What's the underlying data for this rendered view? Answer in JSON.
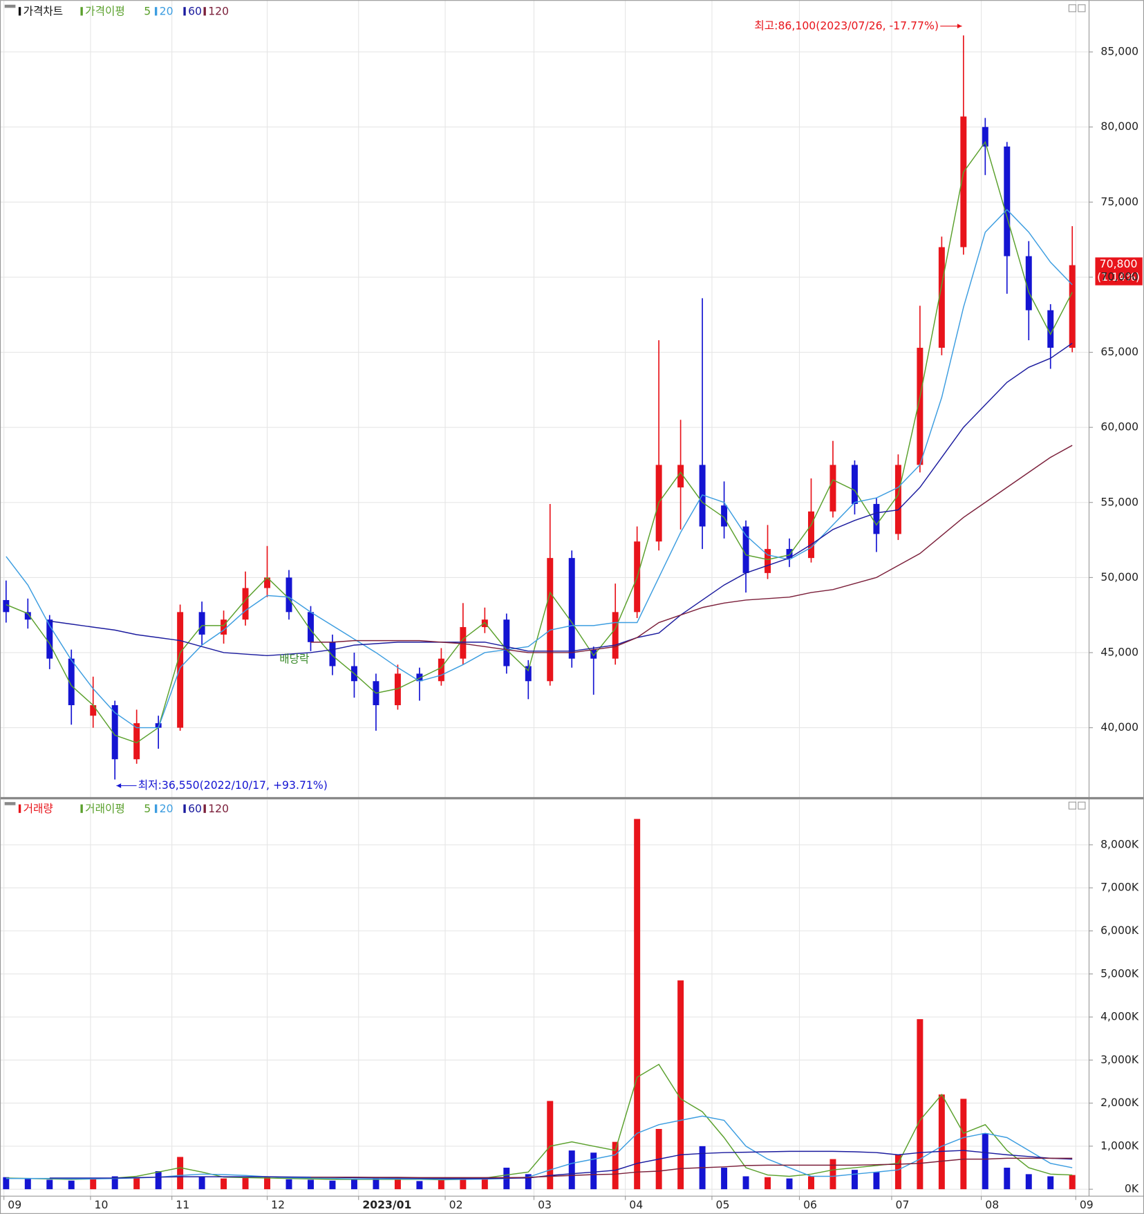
{
  "chart_data": [
    {
      "type": "candlestick",
      "title": "가격차트",
      "ma_label": "가격이평",
      "x": [
        0,
        5,
        10,
        15,
        20,
        25,
        30,
        35,
        40,
        45,
        50,
        55,
        60,
        65,
        70,
        75,
        80,
        85,
        90,
        95,
        100,
        105,
        110,
        115,
        120,
        125,
        130,
        135,
        140,
        145,
        150,
        155,
        160,
        165,
        170,
        175,
        180,
        185,
        190,
        195,
        200,
        205,
        210,
        215,
        220,
        225,
        230,
        235,
        240,
        245
      ],
      "open": [
        48500,
        47700,
        47200,
        44600,
        40800,
        41500,
        37900,
        40300,
        40000,
        47700,
        46200,
        47200,
        49300,
        50000,
        47700,
        45700,
        44100,
        43100,
        41500,
        43600,
        43100,
        44600,
        46700,
        47200,
        44100,
        43100,
        51300,
        45200,
        44600,
        47700,
        52400,
        56000,
        57500,
        54800,
        53400,
        50300,
        51900,
        51300,
        54400,
        57500,
        54900,
        52900,
        57500,
        65300,
        72000,
        80000,
        78700,
        71400,
        67800,
        65300
      ],
      "high": [
        49800,
        48600,
        47500,
        45200,
        43400,
        41800,
        41200,
        40800,
        48200,
        48400,
        47800,
        50400,
        52100,
        50500,
        48100,
        46200,
        45000,
        43600,
        44200,
        44000,
        45300,
        48300,
        48000,
        47600,
        44500,
        54900,
        51800,
        45400,
        49600,
        53400,
        65800,
        60500,
        68600,
        56400,
        53800,
        53500,
        52600,
        56600,
        59100,
        57800,
        55300,
        58200,
        68100,
        72700,
        86100,
        80600,
        79000,
        72400,
        68200,
        73400
      ],
      "low": [
        47000,
        46600,
        43900,
        40200,
        40000,
        36550,
        37600,
        38600,
        39800,
        45500,
        45600,
        46800,
        48700,
        47200,
        45100,
        43500,
        42000,
        39800,
        41200,
        41800,
        42800,
        44200,
        46300,
        43600,
        41900,
        42800,
        44000,
        42200,
        44200,
        47300,
        51800,
        53200,
        51900,
        52600,
        49000,
        49900,
        50700,
        51000,
        54000,
        54200,
        51700,
        52500,
        57000,
        64800,
        71500,
        76800,
        68900,
        65800,
        63900,
        65000
      ],
      "close": [
        47700,
        47200,
        44600,
        41500,
        41500,
        37900,
        40300,
        40000,
        47700,
        46200,
        47200,
        49300,
        50000,
        47700,
        45700,
        44100,
        43100,
        41500,
        43600,
        43100,
        44600,
        46700,
        47200,
        44100,
        43100,
        51300,
        44600,
        44600,
        47700,
        52400,
        57500,
        57500,
        53400,
        53400,
        50300,
        51900,
        51300,
        54400,
        57500,
        54900,
        52900,
        57500,
        65300,
        72000,
        80700,
        78700,
        71400,
        67800,
        65300,
        70800
      ],
      "up_color": "#e8141b",
      "down_color": "#1414d2",
      "series": [
        {
          "name": "5",
          "color": "#5aa02c",
          "values": [
            48200,
            47600,
            45600,
            42800,
            41500,
            39500,
            39000,
            40000,
            45000,
            46800,
            46800,
            48500,
            50000,
            48600,
            46500,
            44800,
            43600,
            42300,
            42600,
            43300,
            44000,
            45900,
            47000,
            45200,
            43800,
            49000,
            47000,
            44800,
            46600,
            50000,
            55000,
            57000,
            55000,
            54000,
            51500,
            51200,
            51500,
            53500,
            56500,
            55800,
            53500,
            55500,
            62000,
            69500,
            77000,
            79000,
            74000,
            69000,
            66200,
            69000
          ]
        },
        {
          "name": "20",
          "color": "#3c9de0",
          "values": [
            51400,
            49500,
            46800,
            44500,
            42600,
            41000,
            40000,
            40000,
            44000,
            45500,
            46500,
            47800,
            48800,
            48700,
            47700,
            46800,
            45900,
            45000,
            44000,
            43100,
            43500,
            44200,
            45000,
            45200,
            45400,
            46500,
            46800,
            46800,
            47000,
            47000,
            50000,
            53000,
            55500,
            55000,
            52800,
            51500,
            51200,
            52000,
            53500,
            55000,
            55300,
            56000,
            57500,
            62000,
            68000,
            73000,
            74500,
            73000,
            71000,
            69500
          ]
        },
        {
          "name": "60",
          "color": "#1b1b9e",
          "values": [
            null,
            null,
            47100,
            46900,
            46700,
            46500,
            46200,
            46000,
            45800,
            45400,
            45000,
            44900,
            44800,
            44900,
            45000,
            45200,
            45500,
            45600,
            45700,
            45700,
            45700,
            45700,
            45700,
            45400,
            45100,
            45100,
            45100,
            45300,
            45500,
            46000,
            46300,
            47500,
            48500,
            49500,
            50300,
            50800,
            51300,
            52200,
            53200,
            53800,
            54300,
            54500,
            56000,
            58000,
            60000,
            61500,
            63000,
            64000,
            64600,
            65600
          ]
        },
        {
          "name": "120",
          "color": "#7b1f3a",
          "values": [
            null,
            null,
            null,
            null,
            null,
            null,
            null,
            null,
            null,
            null,
            null,
            null,
            null,
            null,
            45700,
            45700,
            45800,
            45800,
            45800,
            45800,
            45700,
            45600,
            45400,
            45200,
            45000,
            45000,
            45000,
            45200,
            45400,
            46000,
            47000,
            47500,
            48000,
            48300,
            48500,
            48600,
            48700,
            49000,
            49200,
            49600,
            50000,
            50800,
            51600,
            52800,
            54000,
            55000,
            56000,
            57000,
            58000,
            58800
          ]
        }
      ],
      "xlim": [
        -1.4,
        248.5
      ],
      "ylim": [
        35460,
        88040
      ],
      "yticks": [
        {
          "value": 40000,
          "label": "40,000"
        },
        {
          "value": 45000,
          "label": "45,000"
        },
        {
          "value": 50000,
          "label": "50,000"
        },
        {
          "value": 55000,
          "label": "55,000"
        },
        {
          "value": 60000,
          "label": "60,000"
        },
        {
          "value": 65000,
          "label": "65,000"
        },
        {
          "value": 70000,
          "label": "70,000"
        },
        {
          "value": 75000,
          "label": "75,000"
        },
        {
          "value": 80000,
          "label": "80,000"
        },
        {
          "value": 85000,
          "label": "85,000"
        }
      ],
      "grid": true,
      "high_note": "최고:86,100(2023/07/26, -17.77%)",
      "low_note": "최저:36,550(2022/10/17, +93.71%)",
      "dividend_note": "배당락",
      "last_label": "70,800",
      "last_change": "(1.14%)"
    },
    {
      "type": "bar",
      "title": "거래량",
      "ma_label": "거래이평",
      "x": [
        0,
        5,
        10,
        15,
        20,
        25,
        30,
        35,
        40,
        45,
        50,
        55,
        60,
        65,
        70,
        75,
        80,
        85,
        90,
        95,
        100,
        105,
        110,
        115,
        120,
        125,
        130,
        135,
        140,
        145,
        150,
        155,
        160,
        165,
        170,
        175,
        180,
        185,
        190,
        195,
        200,
        205,
        210,
        215,
        220,
        225,
        230,
        235,
        240,
        245
      ],
      "values": [
        280,
        250,
        220,
        200,
        240,
        300,
        260,
        420,
        750,
        300,
        250,
        280,
        300,
        230,
        220,
        200,
        250,
        260,
        220,
        190,
        210,
        250,
        230,
        500,
        350,
        2050,
        900,
        850,
        1100,
        8600,
        1400,
        4850,
        1000,
        500,
        300,
        280,
        250,
        300,
        700,
        450,
        400,
        800,
        3950,
        2200,
        2100,
        1300,
        500,
        350,
        300,
        330
      ],
      "series": [
        {
          "name": "5",
          "color": "#5aa02c",
          "values": [
            260,
            250,
            240,
            230,
            240,
            260,
            300,
            400,
            500,
            400,
            280,
            270,
            260,
            250,
            240,
            230,
            230,
            230,
            230,
            230,
            220,
            230,
            260,
            330,
            400,
            1000,
            1100,
            1000,
            900,
            2600,
            2900,
            2100,
            1800,
            1200,
            500,
            330,
            300,
            350,
            450,
            500,
            550,
            600,
            1600,
            2200,
            1300,
            1500,
            900,
            500,
            350,
            330
          ]
        },
        {
          "name": "20",
          "color": "#3c9de0",
          "values": [
            250,
            250,
            250,
            240,
            240,
            250,
            260,
            280,
            320,
            350,
            340,
            320,
            290,
            270,
            260,
            250,
            240,
            240,
            240,
            235,
            230,
            230,
            235,
            250,
            280,
            450,
            600,
            700,
            800,
            1300,
            1500,
            1600,
            1700,
            1600,
            1000,
            700,
            500,
            300,
            300,
            350,
            400,
            450,
            700,
            1000,
            1200,
            1300,
            1200,
            900,
            600,
            500
          ]
        },
        {
          "name": "60",
          "color": "#1b1b9e",
          "values": [
            null,
            null,
            260,
            260,
            260,
            260,
            270,
            280,
            290,
            290,
            290,
            290,
            290,
            285,
            280,
            275,
            270,
            265,
            260,
            255,
            250,
            250,
            250,
            255,
            260,
            320,
            360,
            400,
            440,
            600,
            700,
            800,
            830,
            850,
            860,
            870,
            880,
            880,
            880,
            870,
            850,
            800,
            850,
            880,
            900,
            850,
            800,
            760,
            720,
            700
          ]
        },
        {
          "name": "120",
          "color": "#7b1f3a",
          "values": [
            null,
            null,
            null,
            null,
            null,
            null,
            null,
            null,
            null,
            null,
            null,
            null,
            null,
            null,
            280,
            280,
            280,
            275,
            275,
            270,
            270,
            270,
            270,
            270,
            275,
            300,
            320,
            340,
            350,
            400,
            420,
            480,
            500,
            520,
            550,
            560,
            560,
            560,
            560,
            560,
            570,
            580,
            600,
            650,
            700,
            700,
            720,
            720,
            720,
            720
          ]
        }
      ],
      "xlim": [
        -1.4,
        248.5
      ],
      "ylim": [
        -160,
        8740
      ],
      "yticks": [
        {
          "value": 0,
          "label": "0K"
        },
        {
          "value": 1000,
          "label": "1,000K"
        },
        {
          "value": 2000,
          "label": "2,000K"
        },
        {
          "value": 3000,
          "label": "3,000K"
        },
        {
          "value": 4000,
          "label": "4,000K"
        },
        {
          "value": 5000,
          "label": "5,000K"
        },
        {
          "value": 6000,
          "label": "6,000K"
        },
        {
          "value": 7000,
          "label": "7,000K"
        },
        {
          "value": 8000,
          "label": "8,000K"
        }
      ],
      "xticks": [
        {
          "value": -0.5,
          "label": "09"
        },
        {
          "value": 19.4,
          "label": "10"
        },
        {
          "value": 38.1,
          "label": "11"
        },
        {
          "value": 60,
          "label": "12"
        },
        {
          "value": 81,
          "label": "2023/01"
        },
        {
          "value": 100.9,
          "label": "02"
        },
        {
          "value": 121.3,
          "label": "03"
        },
        {
          "value": 142.3,
          "label": "04"
        },
        {
          "value": 162.2,
          "label": "05"
        },
        {
          "value": 182.3,
          "label": "06"
        },
        {
          "value": 203.5,
          "label": "07"
        },
        {
          "value": 224.1,
          "label": "08"
        },
        {
          "value": 245.8,
          "label": "09"
        }
      ],
      "grid": true
    }
  ]
}
